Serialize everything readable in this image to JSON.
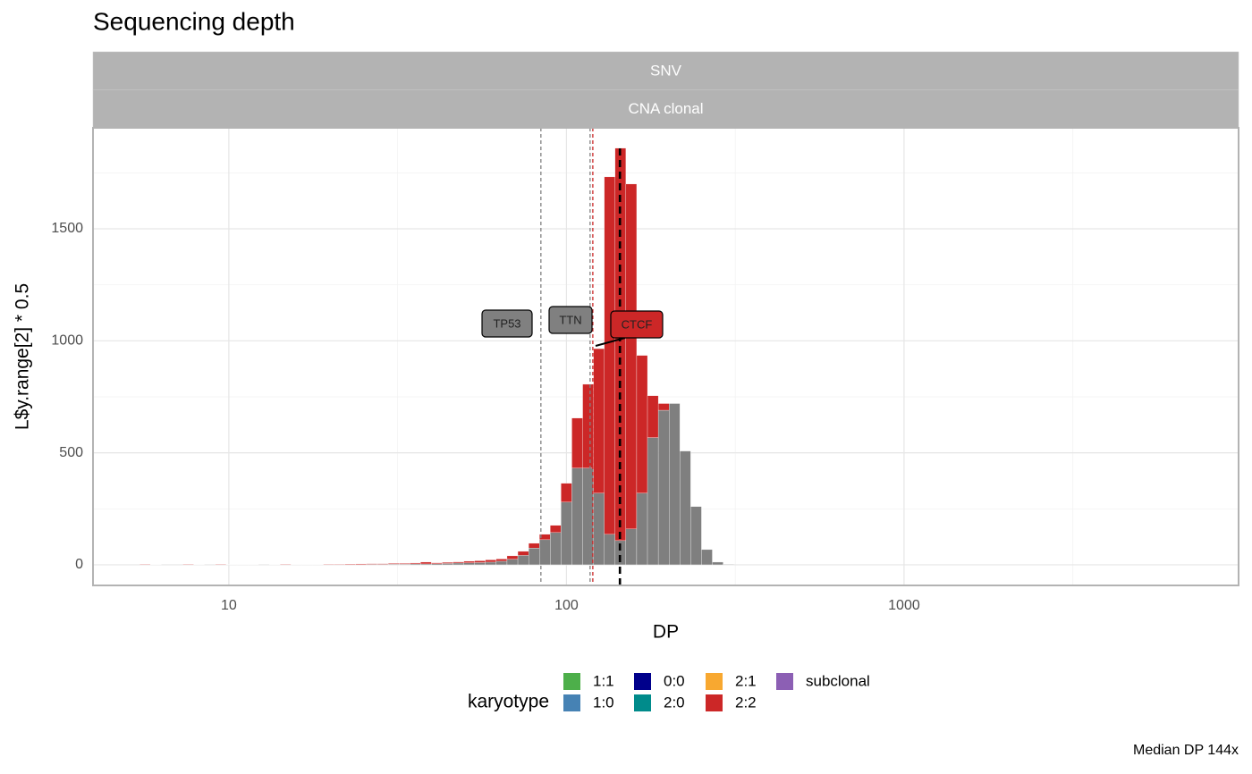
{
  "chart_data": {
    "type": "histogram",
    "title": "Sequencing depth",
    "facets": [
      "SNV",
      "CNA clonal"
    ],
    "x_label": "DP",
    "y_label": "L$y.range[2] * 0.5",
    "caption": "Median DP 144x",
    "log_x": true,
    "grid": true,
    "xlim": [
      3.96,
      9790
    ],
    "xticks": [
      10,
      100,
      1000
    ],
    "minor_xticks": [
      3.162,
      31.62,
      316.2,
      3162
    ],
    "ylim": [
      -92,
      1951
    ],
    "yticks": [
      0,
      500,
      1000,
      1500
    ],
    "minor_yticks": [
      250,
      750,
      1250,
      1750
    ],
    "bins": [
      5.06,
      5.45,
      5.86,
      6.31,
      6.79,
      7.31,
      7.87,
      8.47,
      9.12,
      9.82,
      10.57,
      11.38,
      12.25,
      13.18,
      14.19,
      15.28,
      16.44,
      17.7,
      19.05,
      20.51,
      22.08,
      23.77,
      25.59,
      27.54,
      29.65,
      31.92,
      34.36,
      36.98,
      39.81,
      42.85,
      46.13,
      49.66,
      53.46,
      57.54,
      61.94,
      66.68,
      71.78,
      77.27,
      83.18,
      89.54,
      96.38,
      103.75,
      111.69,
      120.23,
      129.42,
      139.32,
      149.97,
      161.44,
      173.78,
      187.07,
      201.37,
      216.77,
      233.35,
      251.19,
      270.4,
      291.07,
      313.33
    ],
    "series": [
      {
        "color": "#7f7f7f",
        "values": [
          0,
          0,
          0,
          0,
          0,
          0,
          0,
          0,
          0,
          0,
          0,
          0,
          0,
          0,
          0,
          0,
          0,
          0,
          0,
          0,
          0,
          1,
          2,
          2,
          3,
          3,
          4,
          4,
          5,
          6,
          8,
          9,
          10,
          12,
          16,
          25,
          42,
          75,
          112,
          144,
          280,
          432,
          432,
          320,
          136,
          108,
          160,
          320,
          568,
          690,
          720,
          508,
          260,
          68,
          12,
          2
        ]
      },
      {
        "color": "#cc2727",
        "values": [
          0,
          2,
          1,
          0,
          0,
          2,
          1,
          0,
          2,
          1,
          1,
          1,
          0,
          1,
          2,
          1,
          1,
          1,
          2,
          2,
          3,
          3,
          3,
          3,
          3,
          3,
          4,
          8,
          4,
          5,
          5,
          7,
          8,
          10,
          10,
          15,
          18,
          21,
          24,
          32,
          84,
          223,
          374,
          645,
          1596,
          1752,
          1540,
          615,
          187,
          30,
          0,
          0,
          0,
          0,
          0,
          0
        ]
      }
    ],
    "annotations": [
      {
        "label": "TP53",
        "x": 84,
        "color": "#808080"
      },
      {
        "label": "TTN",
        "x": 117.5,
        "color": "#808080"
      },
      {
        "label": "CTCF",
        "x": 119.7,
        "color": "#cc2727"
      }
    ],
    "median_line": {
      "x": 144,
      "color": "#000000"
    },
    "legend": {
      "title": "karyotype",
      "items": [
        {
          "name": "1:1",
          "color": "#4daf4a"
        },
        {
          "name": "1:0",
          "color": "#4682b4"
        },
        {
          "name": "0:0",
          "color": "#00008b"
        },
        {
          "name": "2:0",
          "color": "#008b8b"
        },
        {
          "name": "2:1",
          "color": "#f8a830"
        },
        {
          "name": "2:2",
          "color": "#cc2727"
        },
        {
          "name": "subclonal",
          "color": "#8c5fb4"
        }
      ]
    }
  }
}
